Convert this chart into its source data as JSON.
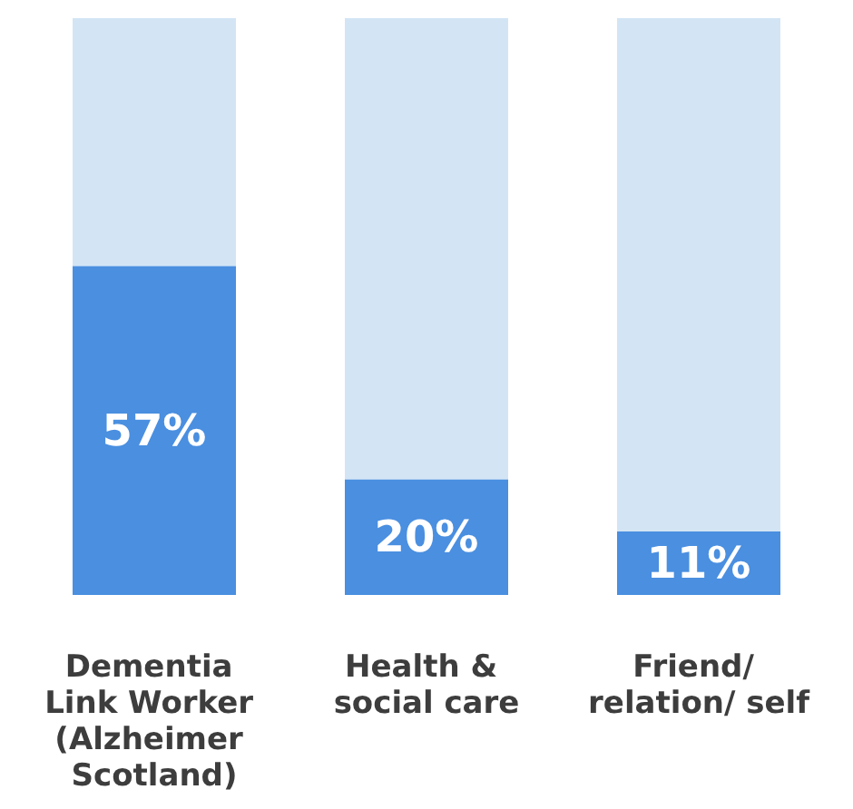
{
  "chart_data": {
    "type": "bar",
    "categories": [
      "Dementia Link Worker (Alzheimer Scotland)",
      "Health & social care",
      "Friend/ relation/ self"
    ],
    "values": [
      57,
      20,
      11
    ],
    "color": "#4a8fe0",
    "ylim": [
      0,
      100
    ],
    "tick_labels": "x",
    "value_labels": [
      "57%",
      "20%",
      "11%"
    ],
    "grid": false
  }
}
